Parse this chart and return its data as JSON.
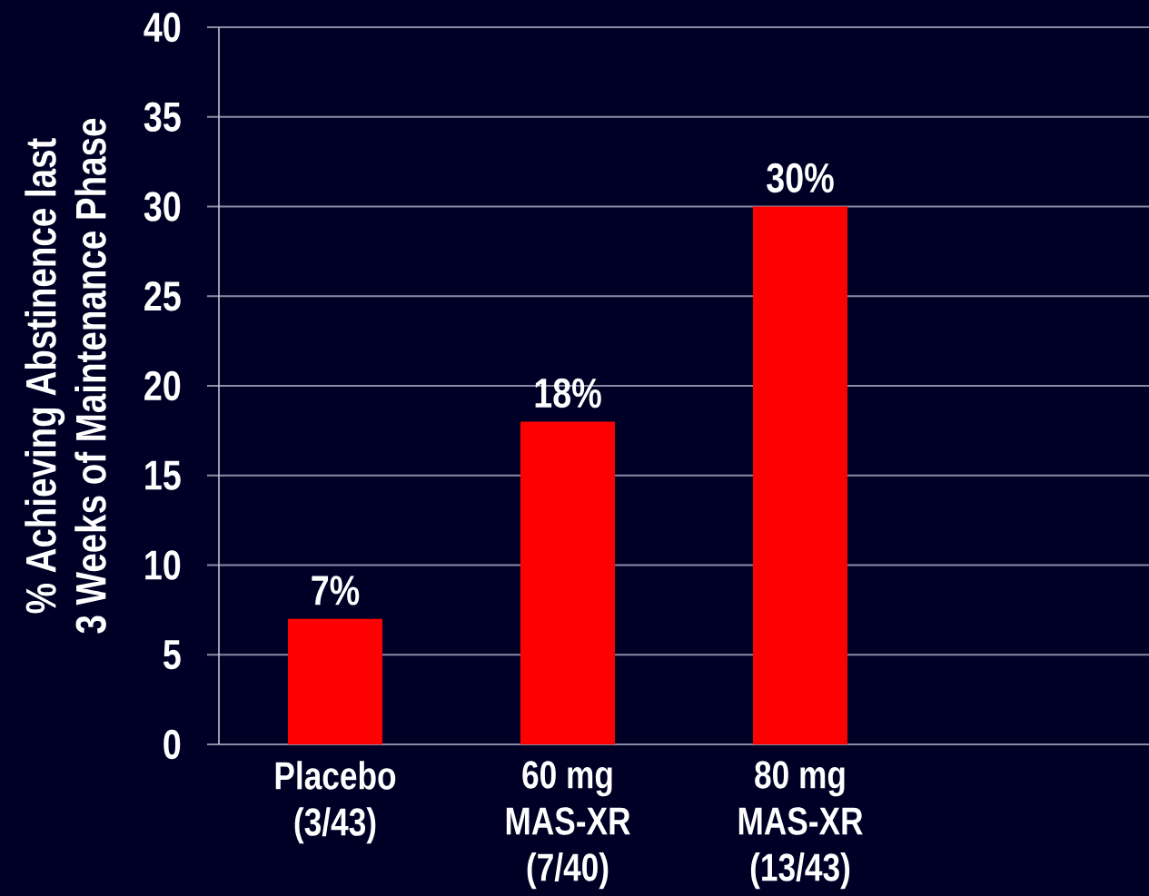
{
  "chart_data": {
    "type": "bar",
    "ylabel": "% Achieving Abstinence last 3 Weeks of Maintenance Phase",
    "categories": [
      "Placebo (3/43)",
      "60 mg MAS-XR (7/40)",
      "80 mg MAS-XR (13/43)"
    ],
    "values": [
      7,
      18,
      30
    ],
    "value_labels": [
      "7%",
      "18%",
      "30%"
    ],
    "color": "#ff0000",
    "ylim": [
      0,
      40
    ],
    "yticks": [
      0,
      5,
      10,
      15,
      20,
      25,
      30,
      35,
      40
    ],
    "grid": "y"
  }
}
